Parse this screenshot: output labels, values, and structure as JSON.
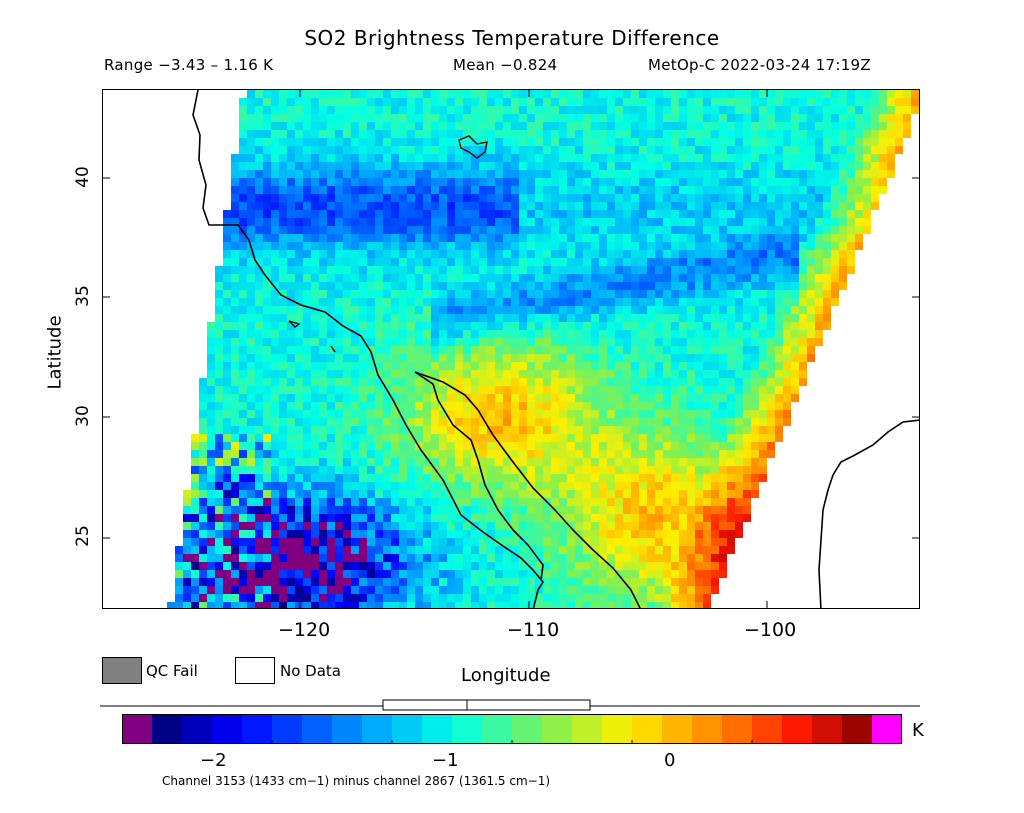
{
  "header": {
    "title": "SO2 Brightness Temperature Difference",
    "range": "Range −3.43 – 1.16 K",
    "mean": "Mean −0.824",
    "satellite": "MetOp-C 2022-03-24 17:19Z"
  },
  "axes": {
    "y_label": "Latitude",
    "x_label": "Longitude",
    "y_ticks": [
      "25",
      "30",
      "35",
      "40"
    ],
    "x_ticks": [
      "−120",
      "−110",
      "−100"
    ],
    "lon_range": [
      -128,
      -94
    ],
    "lat_range": [
      22,
      44
    ]
  },
  "legend": {
    "qc_fail": "QC Fail",
    "no_data": "No Data",
    "qc_fail_color": "#808080",
    "no_data_color": "#ffffff"
  },
  "colorbar": {
    "unit": "K",
    "ticks": [
      "−2",
      "−1",
      "0"
    ],
    "tick_values": [
      -2,
      -1,
      0
    ],
    "min": -2.55,
    "max": 0.85,
    "under_color": "#800080",
    "over_color": "#ff00ff",
    "note": "Channel 3153 (1433 cm−1) minus channel 2867 (1361.5 cm−1)"
  },
  "chart_data": {
    "type": "heatmap",
    "title": "SO2 Brightness Temperature Difference",
    "xlabel": "Longitude",
    "ylabel": "Latitude",
    "xlim": [
      -128,
      -94
    ],
    "ylim": [
      22,
      44
    ],
    "value_range_K": [
      -3.43,
      1.16
    ],
    "mean_K": -0.824,
    "colorbar_ticks": [
      -2,
      -1,
      0
    ]
  }
}
